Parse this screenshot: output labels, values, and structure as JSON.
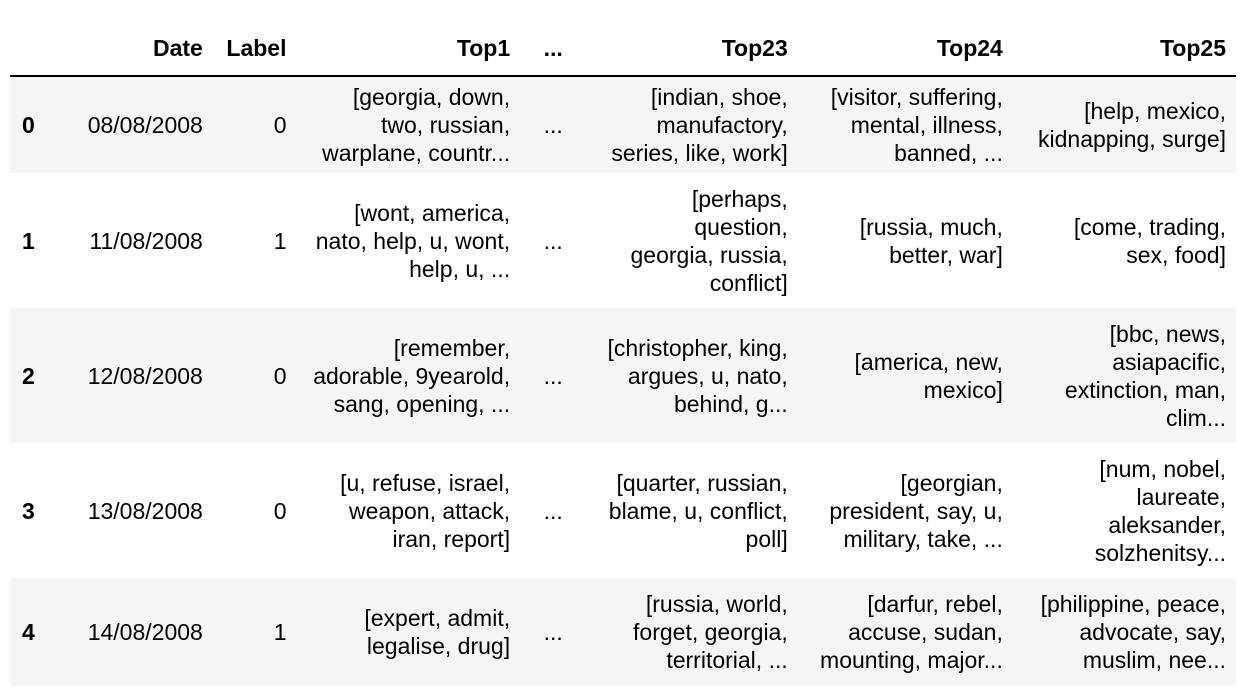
{
  "columns": [
    "",
    "Date",
    "Label",
    "Top1",
    "...",
    "Top23",
    "Top24",
    "Top25"
  ],
  "rows": [
    {
      "index": "0",
      "date": "08/08/2008",
      "label": "0",
      "top1": "[georgia, down,\ntwo, russian,\nwarplane, countr...",
      "ellipsis": "...",
      "top23": "[indian, shoe,\nmanufactory,\nseries, like, work]",
      "top24": "[visitor, suffering,\nmental, illness,\nbanned, ...",
      "top25": "[help, mexico,\nkidnapping, surge]"
    },
    {
      "index": "1",
      "date": "11/08/2008",
      "label": "1",
      "top1": "[wont, america,\nnato, help, u, wont,\nhelp, u, ...",
      "ellipsis": "...",
      "top23": "[perhaps,\nquestion,\ngeorgia, russia,\nconflict]",
      "top24": "[russia, much,\nbetter, war]",
      "top25": "[come, trading,\nsex, food]"
    },
    {
      "index": "2",
      "date": "12/08/2008",
      "label": "0",
      "top1": "[remember,\nadorable, 9yearold,\nsang, opening, ...",
      "ellipsis": "...",
      "top23": "[christopher, king,\nargues, u, nato,\nbehind, g...",
      "top24": "[america, new,\nmexico]",
      "top25": "[bbc, news,\nasiapacific,\nextinction, man,\nclim..."
    },
    {
      "index": "3",
      "date": "13/08/2008",
      "label": "0",
      "top1": "[u, refuse, israel,\nweapon, attack,\niran, report]",
      "ellipsis": "...",
      "top23": "[quarter, russian,\nblame, u, conflict,\npoll]",
      "top24": "[georgian,\npresident, say, u,\nmilitary, take, ...",
      "top25": "[num, nobel,\nlaureate,\naleksander,\nsolzhenitsy..."
    },
    {
      "index": "4",
      "date": "14/08/2008",
      "label": "1",
      "top1": "[expert, admit,\nlegalise, drug]",
      "ellipsis": "...",
      "top23": "[russia, world,\nforget, georgia,\nterritorial, ...",
      "top24": "[darfur, rebel,\naccuse, sudan,\nmounting, major...",
      "top25": "[philippine, peace,\nadvocate, say,\nmuslim, nee..."
    }
  ]
}
